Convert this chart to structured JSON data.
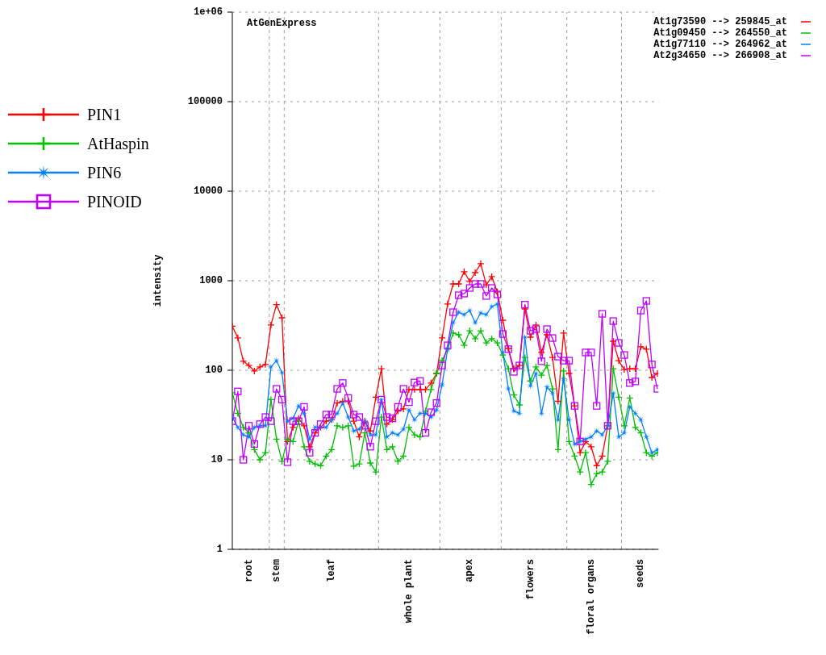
{
  "chart_data": {
    "type": "line",
    "title": "AtGenExpress",
    "ylabel": "intensity",
    "log": true,
    "grid": "y",
    "legend": "top right",
    "categories": [
      null,
      null,
      null,
      "root",
      null,
      null,
      null,
      null,
      "stem",
      null,
      null,
      null,
      null,
      null,
      null,
      null,
      null,
      null,
      "leaf",
      null,
      null,
      null,
      null,
      null,
      null,
      null,
      null,
      null,
      null,
      null,
      null,
      null,
      "whole plant",
      null,
      null,
      null,
      null,
      null,
      null,
      null,
      null,
      null,
      null,
      "apex",
      null,
      null,
      null,
      null,
      null,
      null,
      null,
      null,
      null,
      null,
      "flowers",
      null,
      null,
      null,
      null,
      null,
      null,
      null,
      null,
      null,
      null,
      "floral organs",
      null,
      null,
      null,
      null,
      null,
      null,
      null,
      null,
      "seeds",
      null,
      null,
      null
    ],
    "ylim": [
      1,
      1000000
    ],
    "yticks": [
      1,
      10,
      100,
      1000,
      10000,
      100000,
      {
        "value": 1000000,
        "label": "1e+06"
      }
    ],
    "annotations": [
      "PIN1",
      "AtHaspin",
      "PIN6",
      "PINOID"
    ],
    "series": [
      {
        "name": "At1g73590 --> 259845_at",
        "color": "#ff0000",
        "marker": "cross",
        "values": [
          310,
          230,
          126,
          113,
          98,
          109,
          116,
          320,
          540,
          385,
          16,
          23,
          29,
          24,
          14,
          20,
          23,
          27,
          28,
          43,
          45,
          45,
          27,
          18,
          27,
          21,
          50,
          104,
          25,
          28,
          35,
          37,
          61,
          61,
          61,
          61,
          72,
          92,
          230,
          550,
          920,
          920,
          1260,
          980,
          1230,
          1550,
          900,
          1110,
          750,
          362,
          175,
          104,
          113,
          484,
          234,
          320,
          158,
          249,
          139,
          45,
          260,
          92,
          40,
          12,
          16,
          14,
          8.6,
          11,
          24,
          211,
          128,
          102,
          104,
          104,
          183,
          172,
          83,
          92
        ]
      },
      {
        "name": "At1g09450 --> 264550_at",
        "color": "#00c000",
        "marker": "cross",
        "values": [
          56,
          33,
          23,
          20,
          13,
          10,
          12,
          47,
          17,
          9.6,
          17,
          16,
          27,
          14,
          9.6,
          9,
          8.6,
          11,
          13,
          24,
          23,
          24,
          8.5,
          9,
          20,
          9.2,
          7.3,
          30,
          13,
          14,
          9.6,
          11,
          23,
          19,
          18,
          35,
          61,
          92,
          128,
          172,
          260,
          249,
          190,
          276,
          225,
          276,
          202,
          225,
          202,
          148,
          104,
          53,
          41,
          139,
          76,
          109,
          88,
          113,
          62,
          13,
          98,
          16,
          11,
          7.3,
          12,
          5.3,
          7,
          7.3,
          9.6,
          104,
          50,
          24,
          49,
          23,
          20,
          12,
          11,
          12
        ]
      },
      {
        "name": "At1g77110 --> 264962_at",
        "color": "#0080ff",
        "marker": "star",
        "values": [
          30,
          23,
          19,
          18,
          23,
          24,
          24,
          109,
          128,
          94,
          27,
          29,
          40,
          33,
          17,
          23,
          23,
          23,
          28,
          33,
          43,
          30,
          21,
          22,
          27,
          19,
          19,
          47,
          18,
          20,
          19,
          22,
          36,
          28,
          33,
          33,
          30,
          36,
          69,
          172,
          340,
          445,
          418,
          464,
          340,
          436,
          418,
          515,
          548,
          158,
          62,
          35,
          33,
          234,
          67,
          92,
          33,
          65,
          55,
          28,
          80,
          28,
          15,
          16,
          17,
          18,
          21,
          19,
          24,
          55,
          18,
          20,
          39,
          33,
          28,
          18,
          12,
          13
        ]
      },
      {
        "name": "At2g34650 --> 266908_at",
        "color": "#c000ff",
        "marker": "square",
        "values": [
          27,
          58,
          10,
          24,
          15,
          25,
          30,
          27,
          62,
          47,
          9.4,
          27,
          27,
          39,
          12,
          20,
          25,
          32,
          32,
          62,
          72,
          49,
          32,
          30,
          24,
          14,
          27,
          47,
          30,
          29,
          39,
          62,
          44,
          73,
          76,
          20,
          34,
          43,
          113,
          190,
          445,
          688,
          718,
          829,
          920,
          920,
          675,
          829,
          703,
          254,
          172,
          96,
          113,
          540,
          276,
          288,
          126,
          288,
          229,
          142,
          128,
          128,
          40,
          16,
          158,
          158,
          40,
          427,
          24,
          354,
          202,
          148,
          72,
          75,
          464,
          595,
          116,
          62
        ]
      }
    ]
  }
}
